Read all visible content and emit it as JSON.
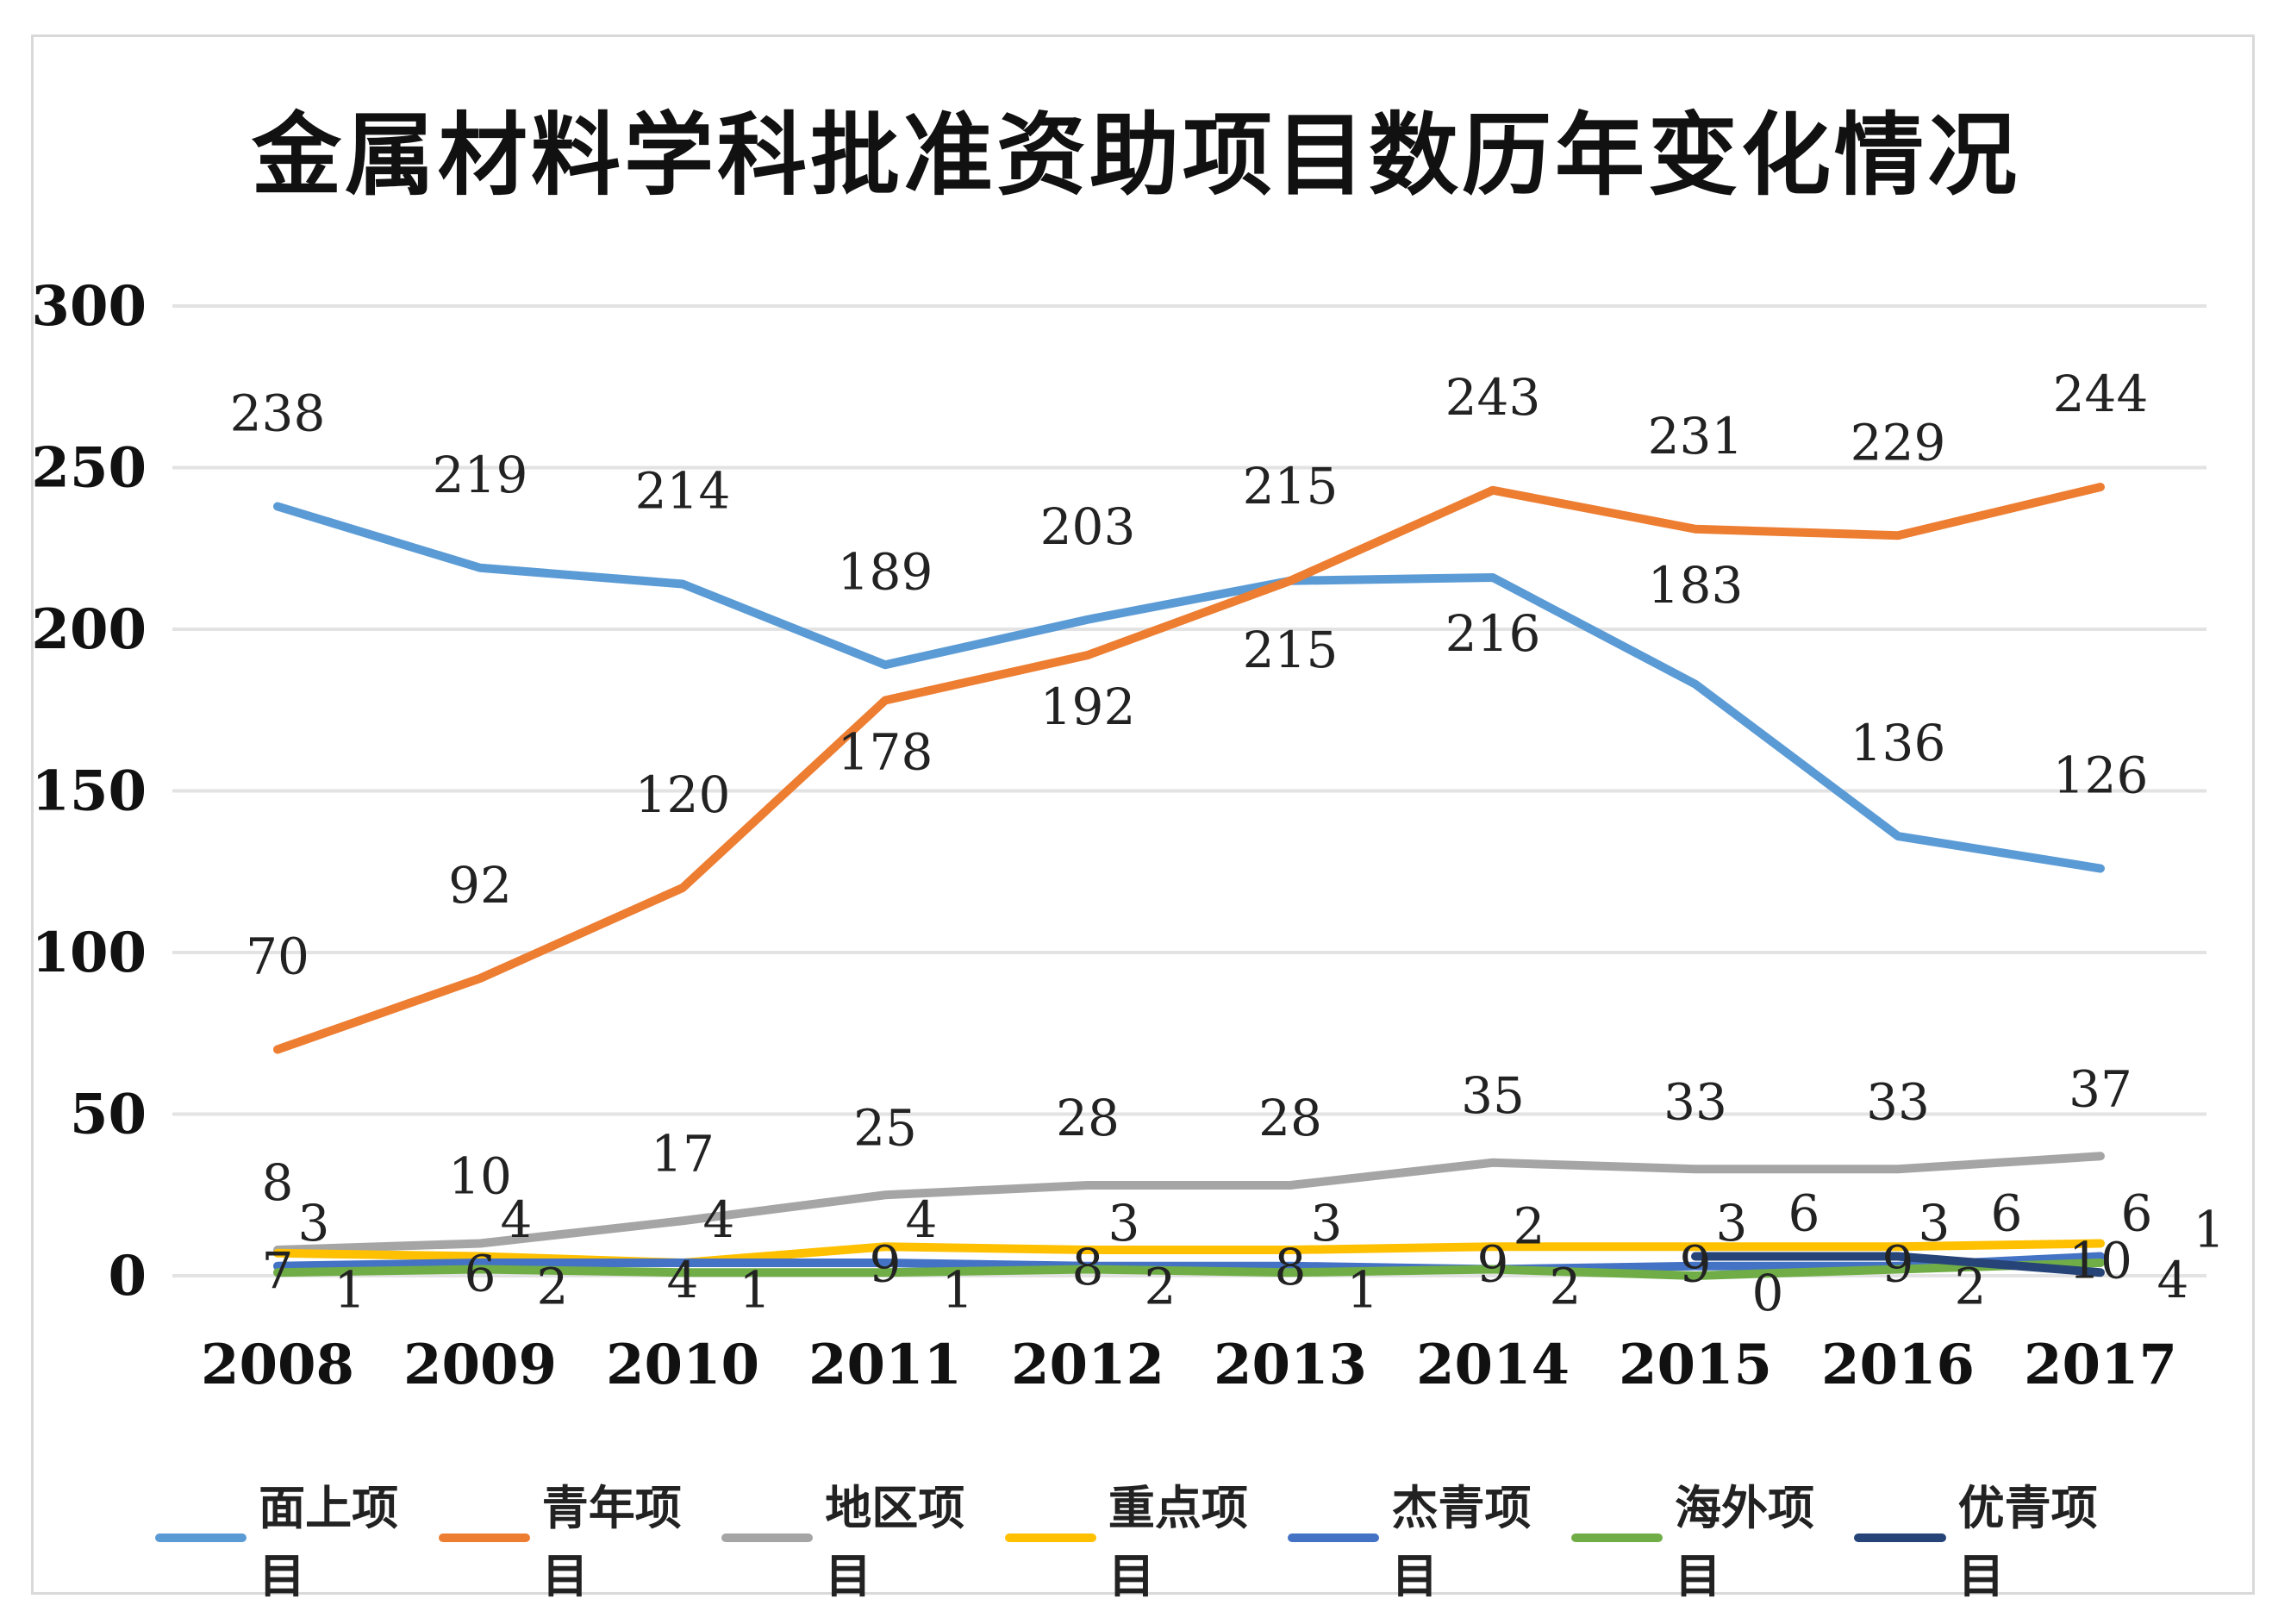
{
  "chart_data": {
    "type": "line",
    "title": "金属材料学科批准资助项目数历年变化情况",
    "categories": [
      "2008",
      "2009",
      "2010",
      "2011",
      "2012",
      "2013",
      "2014",
      "2015",
      "2016",
      "2017"
    ],
    "ylim": [
      0,
      300
    ],
    "yticks": [
      "0",
      "50",
      "100",
      "150",
      "200",
      "250",
      "300"
    ],
    "grid": true,
    "legend_position": "bottom",
    "series": [
      {
        "name": "面上项目",
        "color": "#5b9bd5",
        "values": [
          238,
          219,
          214,
          189,
          203,
          215,
          216,
          183,
          136,
          126
        ]
      },
      {
        "name": "青年项目",
        "color": "#ed7d31",
        "values": [
          70,
          92,
          120,
          178,
          192,
          215,
          243,
          231,
          229,
          244
        ]
      },
      {
        "name": "地区项目",
        "color": "#a5a5a5",
        "values": [
          8,
          10,
          17,
          25,
          28,
          28,
          35,
          33,
          33,
          37
        ]
      },
      {
        "name": "重点项目",
        "color": "#ffc000",
        "values": [
          7,
          6,
          4,
          9,
          8,
          8,
          9,
          9,
          9,
          10
        ]
      },
      {
        "name": "杰青项目",
        "color": "#4472c4",
        "values": [
          3,
          4,
          4,
          4,
          3,
          3,
          2,
          3,
          3,
          6
        ]
      },
      {
        "name": "海外项目",
        "color": "#70ad47",
        "values": [
          1,
          2,
          1,
          1,
          2,
          1,
          2,
          0,
          2,
          4
        ]
      },
      {
        "name": "优青项目",
        "color": "#264478",
        "values": [
          null,
          null,
          null,
          null,
          null,
          null,
          null,
          6,
          6,
          1
        ]
      }
    ]
  }
}
